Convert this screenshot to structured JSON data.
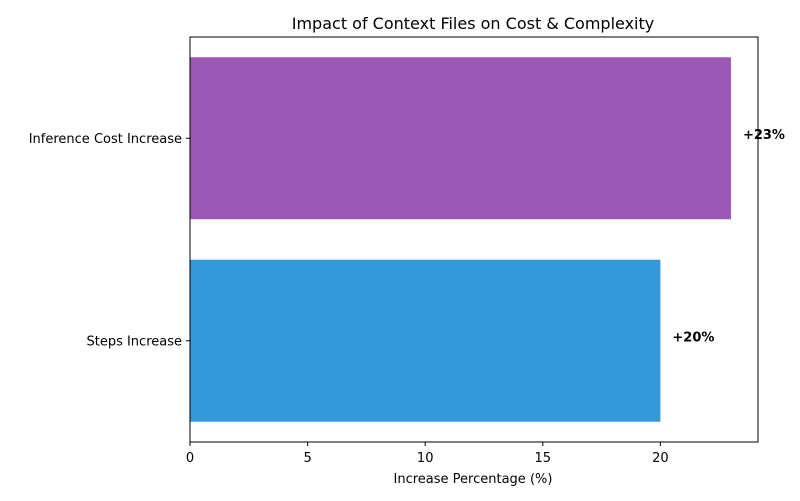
{
  "chart_data": {
    "type": "bar",
    "orientation": "horizontal",
    "title": "Impact of Context Files on Cost & Complexity",
    "xlabel": "Increase Percentage (%)",
    "ylabel": "",
    "xlim": [
      0,
      24.15
    ],
    "x_ticks": [
      0,
      5,
      10,
      15,
      20
    ],
    "grid": false,
    "categories": [
      "Steps Increase",
      "Inference Cost Increase"
    ],
    "values": [
      20,
      23
    ],
    "data_labels": [
      "+20%",
      "+23%"
    ],
    "colors": [
      "#3498db",
      "#9b59b6"
    ]
  }
}
